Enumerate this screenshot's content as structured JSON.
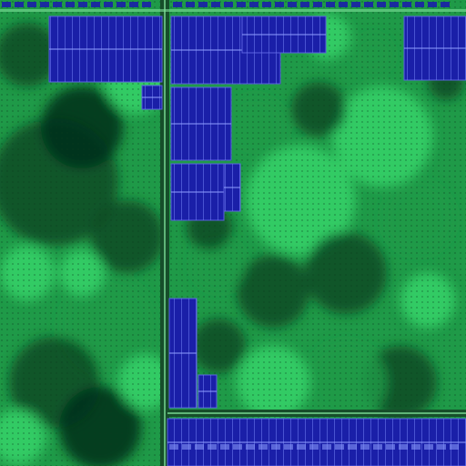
{
  "image": {
    "kind": "die-micrograph",
    "palette": {
      "logic_bright": "#37d46a",
      "logic_mid": "#1f9a48",
      "logic_dark": "#0b4a24",
      "logic_deep": "#06301a",
      "sram_blue": "#1a1fa8",
      "sram_edge": "#5a60e0",
      "sram_bitline": "#8fa0ff",
      "bus_line": "#2e6e3c",
      "bus_highlight": "#7fe09a"
    }
  }
}
